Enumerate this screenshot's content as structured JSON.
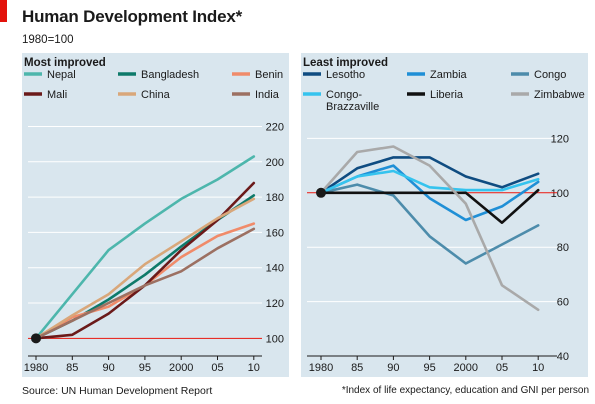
{
  "header": {
    "title": "Human Development Index*",
    "subtitle": "1980=100"
  },
  "footer": {
    "source": "Source: UN Human Development Report",
    "note": "*Index of life expectancy, education and GNI per person"
  },
  "colors": {
    "panel_bg": "#d9e6ee",
    "gridline": "#ffffff",
    "baseline": "#e3120b",
    "accent_tag": "#e3120b",
    "marker": "#1a1a1a"
  },
  "chart_data": [
    {
      "type": "line",
      "title": "Most improved",
      "x": [
        "1980",
        "85",
        "90",
        "95",
        "2000",
        "05",
        "10"
      ],
      "ylim": [
        90,
        220
      ],
      "yticks": [
        100,
        120,
        140,
        160,
        180,
        200,
        220
      ],
      "y_axis_side": "right",
      "grid": true,
      "baseline": 100,
      "legend": "top",
      "legend_columns": 3,
      "series": [
        {
          "name": "Nepal",
          "color": "#4db6ac",
          "values": [
            100,
            125,
            150,
            165,
            179,
            190,
            203
          ]
        },
        {
          "name": "Bangladesh",
          "color": "#0e7a6a",
          "values": [
            100,
            110,
            122,
            136,
            152,
            167,
            181
          ]
        },
        {
          "name": "Benin",
          "color": "#f08b6a",
          "values": [
            100,
            112,
            118,
            130,
            146,
            158,
            165
          ]
        },
        {
          "name": "Mali",
          "color": "#6b1a1a",
          "values": [
            100,
            102,
            114,
            130,
            150,
            167,
            188
          ]
        },
        {
          "name": "China",
          "color": "#d9a77a",
          "values": [
            100,
            113,
            125,
            142,
            155,
            168,
            179
          ]
        },
        {
          "name": "India",
          "color": "#9c7062",
          "values": [
            100,
            110,
            120,
            130,
            138,
            151,
            162
          ]
        }
      ]
    },
    {
      "type": "line",
      "title": "Least improved",
      "x": [
        "1980",
        "85",
        "90",
        "95",
        "2000",
        "05",
        "10"
      ],
      "ylim": [
        40,
        124
      ],
      "yticks": [
        40,
        60,
        80,
        100,
        120
      ],
      "y_axis_side": "right",
      "grid": true,
      "baseline": 100,
      "legend": "top",
      "legend_columns": 3,
      "series": [
        {
          "name": "Lesotho",
          "color": "#0f4c81",
          "values": [
            100,
            109,
            113,
            113,
            106,
            102,
            107
          ]
        },
        {
          "name": "Zambia",
          "color": "#1f8fd6",
          "values": [
            100,
            106,
            110,
            98,
            90,
            95,
            104
          ]
        },
        {
          "name": "Congo",
          "color": "#4d8cab",
          "values": [
            100,
            103,
            99,
            84,
            74,
            81,
            88
          ]
        },
        {
          "name": "Congo-\nBrazzaville",
          "color": "#35c3ee",
          "values": [
            100,
            106,
            108,
            102,
            101,
            101,
            105
          ]
        },
        {
          "name": "Liberia",
          "color": "#111111",
          "values": [
            100,
            100,
            100,
            100,
            100,
            89,
            101
          ]
        },
        {
          "name": "Zimbabwe",
          "color": "#a9a9a9",
          "values": [
            100,
            115,
            117,
            110,
            96,
            66,
            57
          ]
        }
      ]
    }
  ]
}
